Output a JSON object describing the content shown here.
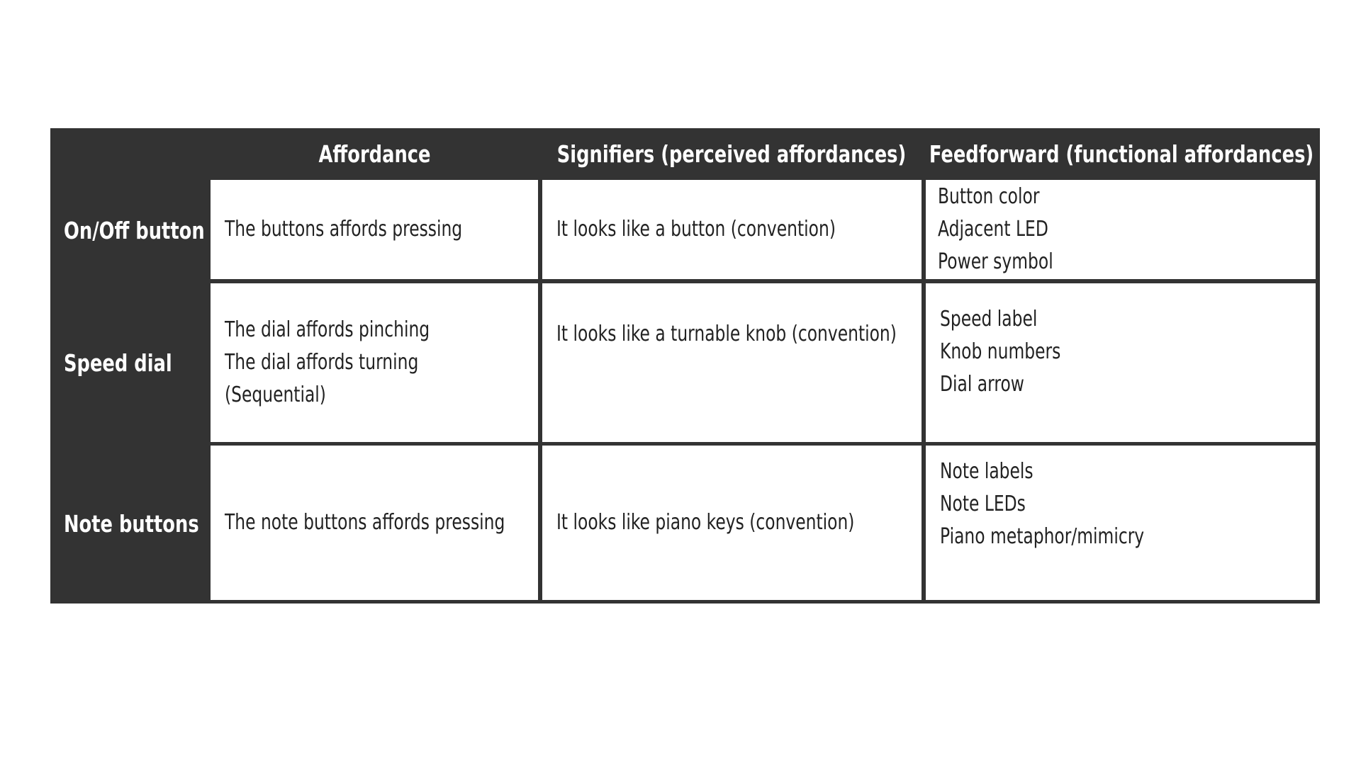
{
  "headers": {
    "affordance": "Affordance",
    "signifiers": "Signifiers (perceived affordances)",
    "feedforward": "Feedforward (functional affordances)"
  },
  "rows": [
    {
      "label": "On/Off button",
      "affordance": [
        "The buttons affords pressing"
      ],
      "signifiers": [
        "It looks like a button (convention)"
      ],
      "feedforward": [
        "Button color",
        "Adjacent LED",
        "Power symbol"
      ]
    },
    {
      "label": "Speed dial",
      "affordance": [
        "The dial affords pinching",
        "The dial affords turning",
        "(Sequential)"
      ],
      "signifiers": [
        "It looks like a turnable knob (convention)"
      ],
      "feedforward": [
        "Speed label",
        "Knob numbers",
        "Dial arrow"
      ]
    },
    {
      "label": "Note buttons",
      "affordance": [
        "The note buttons affords pressing"
      ],
      "signifiers": [
        "It looks like piano keys (convention)"
      ],
      "feedforward": [
        "Note labels",
        "Note LEDs",
        "Piano metaphor/mimicry"
      ]
    }
  ]
}
